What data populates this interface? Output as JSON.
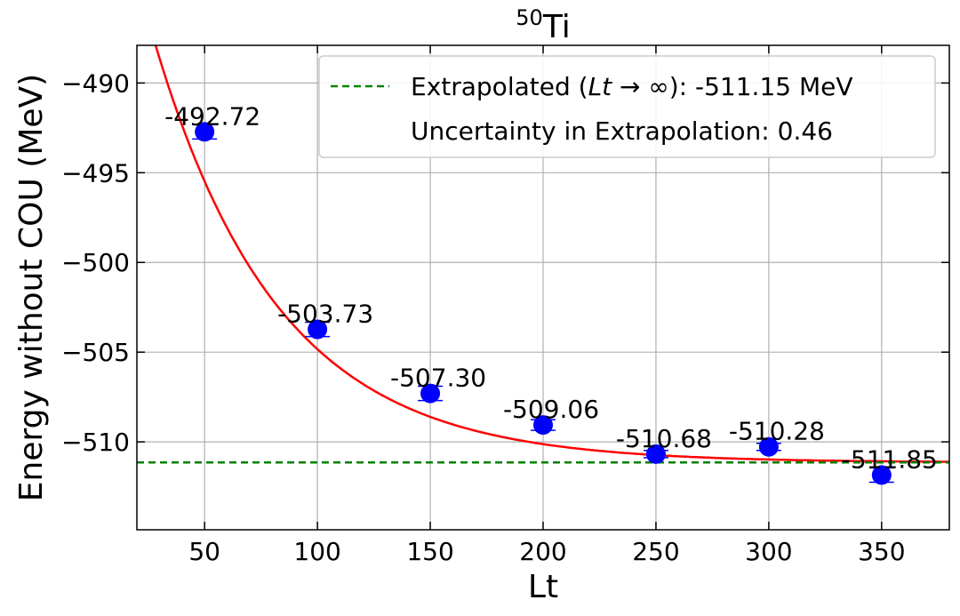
{
  "chart_data": {
    "type": "scatter",
    "title": "Ti",
    "title_superscript": "50",
    "xlabel": "Lt",
    "ylabel": "Energy without COU (MeV)",
    "xlim": [
      20,
      380
    ],
    "ylim": [
      -514.9,
      -487.9
    ],
    "xticks": [
      50,
      100,
      150,
      200,
      250,
      300,
      350
    ],
    "yticks": [
      -490,
      -495,
      -500,
      -505,
      -510
    ],
    "ytick_labels": [
      "−490",
      "−495",
      "−500",
      "−505",
      "−510"
    ],
    "grid": true,
    "legend_position": "top-right",
    "series": [
      {
        "name": "",
        "kind": "points-with-errorbars",
        "color": "#0000ff",
        "x": [
          50,
          100,
          150,
          200,
          250,
          300,
          350
        ],
        "y": [
          -492.72,
          -503.73,
          -507.3,
          -509.06,
          -510.68,
          -510.28,
          -511.85
        ],
        "yerr": [
          0.4,
          0.4,
          0.4,
          0.3,
          0.2,
          0.2,
          0.4
        ],
        "labels": [
          "-492.72",
          "-503.73",
          "-507.30",
          "-509.06",
          "-510.68",
          "-510.28",
          "-511.85"
        ]
      },
      {
        "name": "",
        "kind": "fit-curve",
        "color": "#ff0000",
        "model": "y = a + b*exp(-x/c)",
        "a": -511.15,
        "b": 38.9,
        "c": 55
      },
      {
        "name": "Extrapolated",
        "kind": "hline",
        "color": "#008000",
        "y": -511.15
      }
    ],
    "legend": {
      "line1_prefix": "Extrapolated (",
      "line1_math": "Lt",
      "line1_arrow": " → ∞",
      "line1_suffix": "): -511.15 MeV",
      "line2": "Uncertainty in Extrapolation: 0.46"
    }
  }
}
